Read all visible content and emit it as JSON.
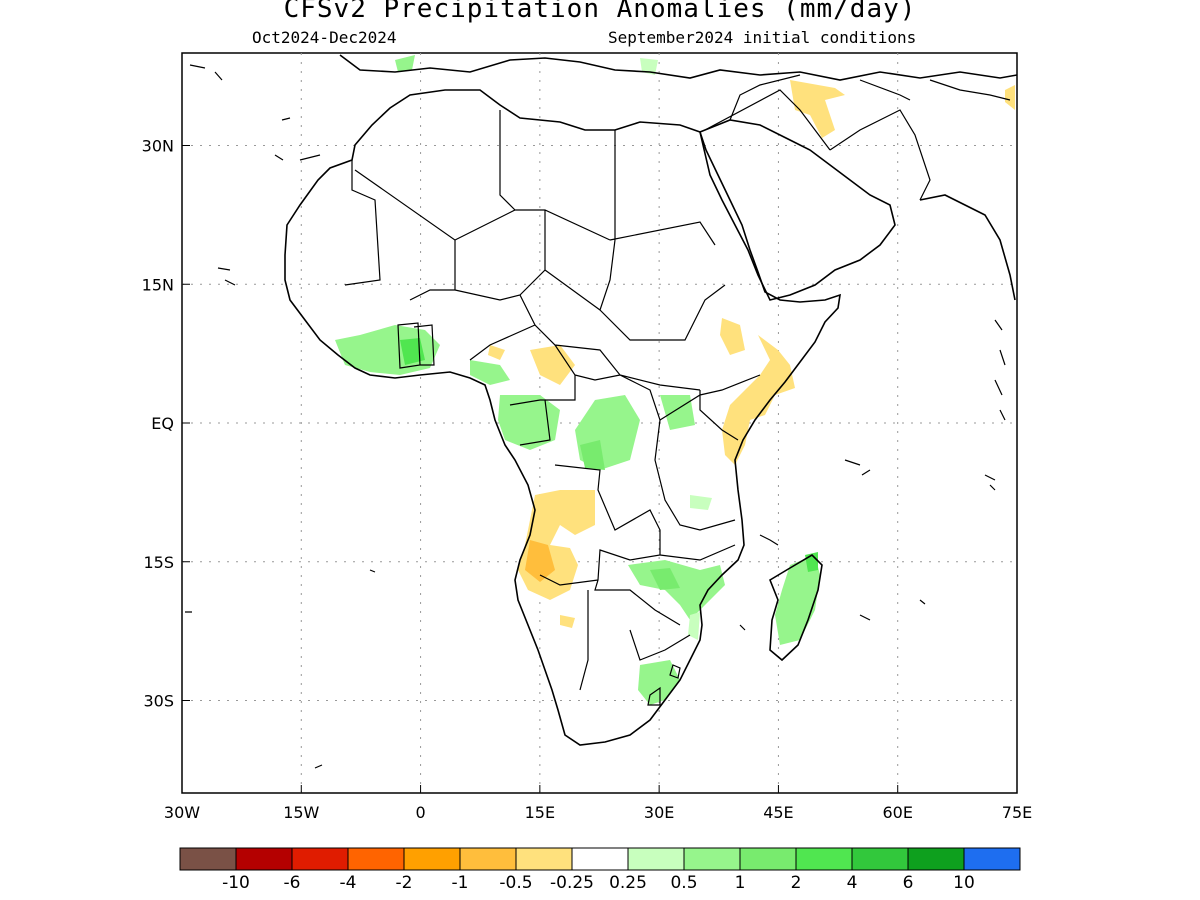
{
  "title": "CFSv2 Precipitation Anomalies (mm/day)",
  "period": "Oct2024-Dec2024",
  "initial_conditions": "September2024 initial conditions",
  "axes": {
    "lon_ticks": [
      "30W",
      "15W",
      "0",
      "15E",
      "30E",
      "45E",
      "60E",
      "75E"
    ],
    "lat_ticks": [
      "30N",
      "15N",
      "EQ",
      "15S",
      "30S"
    ],
    "lon_range": [
      -30,
      75
    ],
    "lat_range": [
      -40,
      40
    ]
  },
  "legend": {
    "colors": [
      "#7a5146",
      "#b40000",
      "#e01c00",
      "#ff6400",
      "#ffa000",
      "#ffbe3c",
      "#ffe17d",
      "#ffffff",
      "#c8ffbe",
      "#96f58c",
      "#78eb6e",
      "#50e650",
      "#32c83c",
      "#0ea01e",
      "#1e6ef0"
    ],
    "labels": [
      "-10",
      "-6",
      "-4",
      "-2",
      "-1",
      "-0.5",
      "-0.25",
      "0.25",
      "0.5",
      "1",
      "2",
      "4",
      "6",
      "10"
    ]
  }
}
